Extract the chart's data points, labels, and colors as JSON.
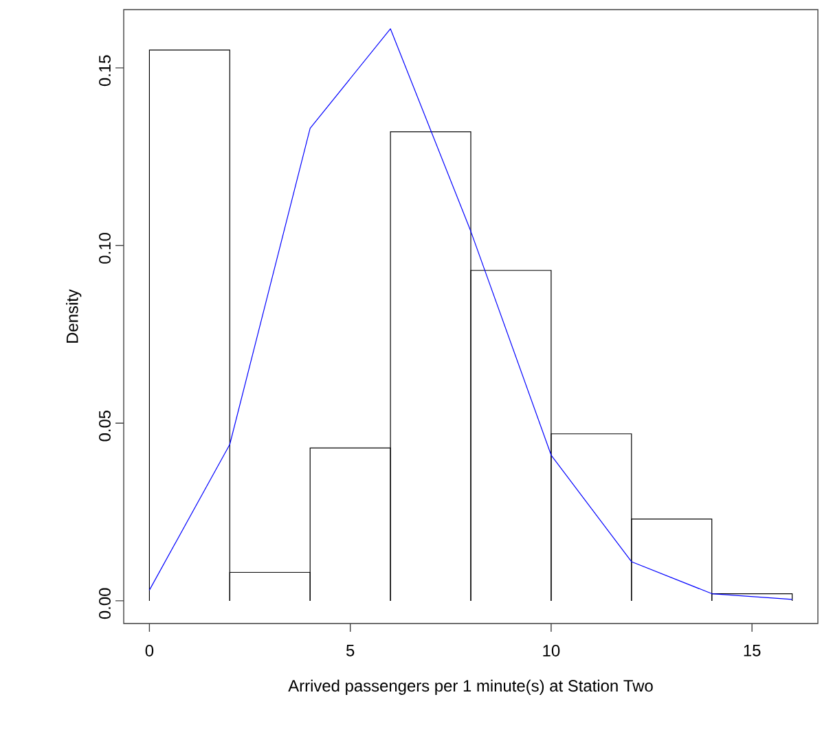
{
  "chart_data": {
    "type": "histogram",
    "xlabel": "Arrived passengers per 1 minute(s) at Station Two",
    "ylabel": "Density",
    "bins": [
      0,
      2,
      4,
      6,
      8,
      10,
      12,
      14,
      16
    ],
    "values": [
      0.155,
      0.008,
      0.043,
      0.132,
      0.093,
      0.047,
      0.023,
      0.002
    ],
    "color": "#000000",
    "series": [
      {
        "type": "line",
        "color": "#0000ff",
        "x": [
          0,
          2,
          4,
          6,
          8,
          10,
          12,
          14,
          16
        ],
        "values": [
          0.003,
          0.044,
          0.133,
          0.161,
          0.104,
          0.041,
          0.011,
          0.002,
          0.0004
        ]
      }
    ],
    "xlim": [
      -0.64,
      16.64
    ],
    "ylim": [
      -0.0064,
      0.1664
    ],
    "xticks": [
      0,
      5,
      10,
      15
    ],
    "yticks": [
      {
        "value": 0,
        "label": "0.00"
      },
      {
        "value": 0.05,
        "label": "0.05"
      },
      {
        "value": 0.1,
        "label": "0.10"
      },
      {
        "value": 0.15,
        "label": "0.15"
      }
    ]
  }
}
